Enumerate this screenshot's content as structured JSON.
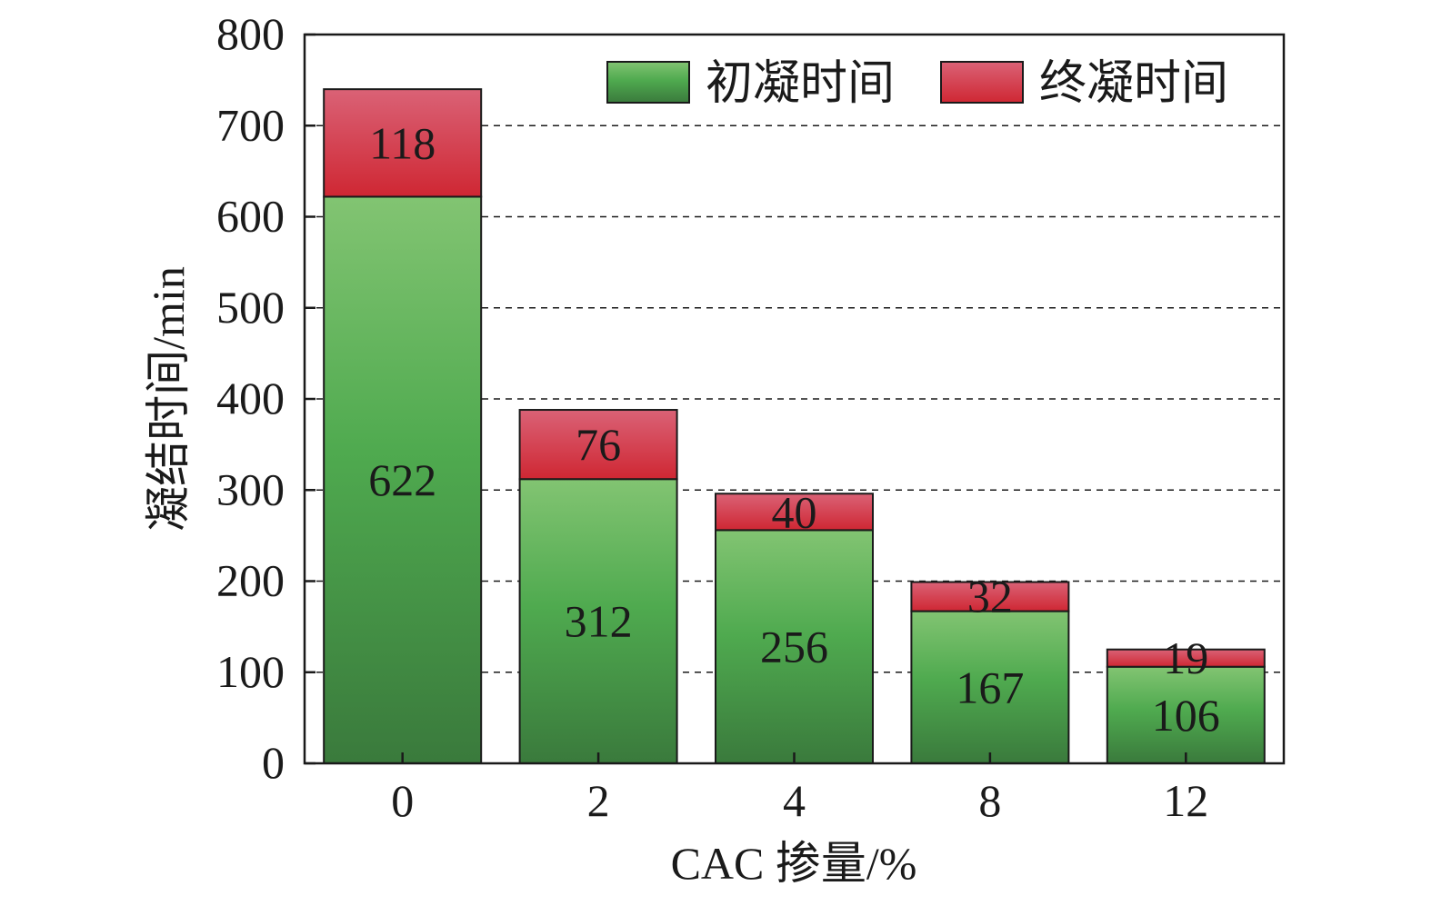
{
  "chart_data": {
    "type": "bar",
    "stacked": true,
    "categories": [
      "0",
      "2",
      "4",
      "8",
      "12"
    ],
    "series": [
      {
        "name": "初凝时间",
        "values": [
          622,
          312,
          256,
          167,
          106
        ],
        "color": "#4fac4f"
      },
      {
        "name": "终凝时间",
        "values": [
          118,
          76,
          40,
          32,
          19
        ],
        "color": "#d42f40"
      }
    ],
    "xlabel": "CAC 掺量/%",
    "ylabel": "凝结时间/min",
    "ylim": [
      0,
      800
    ],
    "yticks": [
      "0",
      "100",
      "200",
      "300",
      "400",
      "500",
      "600",
      "700",
      "800"
    ],
    "grid": "horizontal dashed",
    "legend": "top-right"
  }
}
